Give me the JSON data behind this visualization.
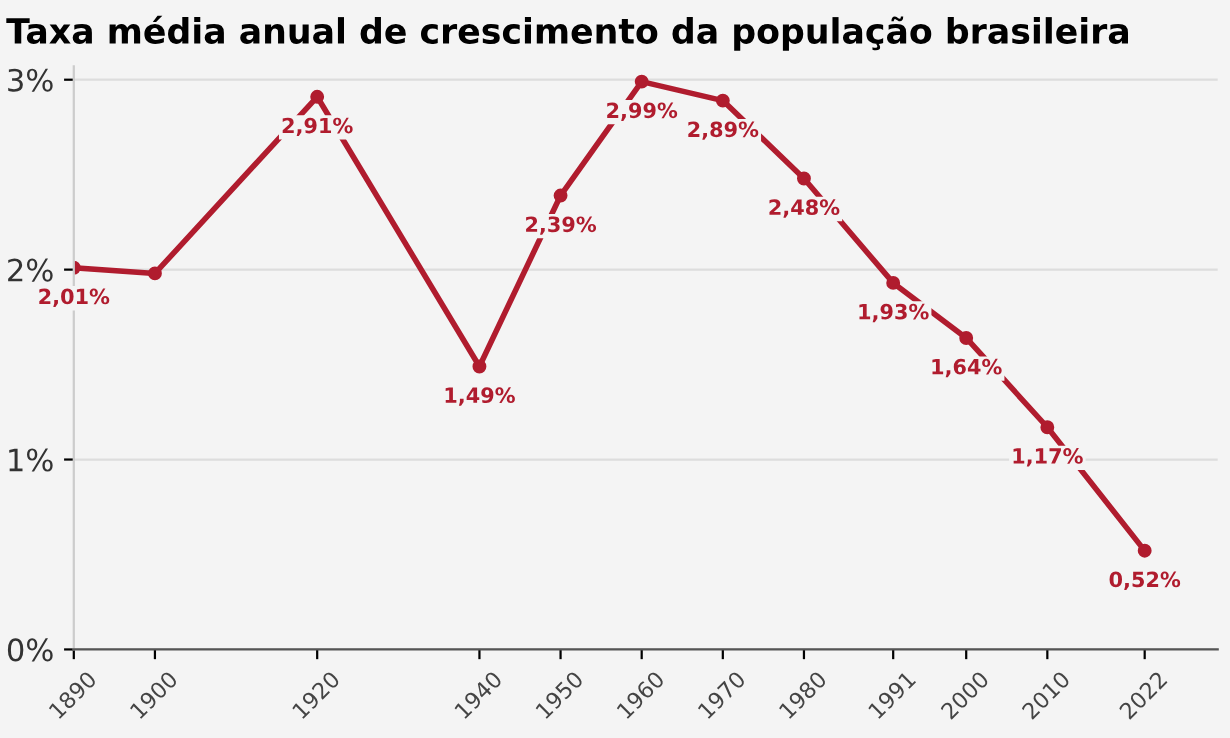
{
  "chart_data": {
    "type": "line",
    "title": "Taxa média anual de crescimento da população brasileira",
    "x": [
      1890,
      1900,
      1920,
      1940,
      1950,
      1960,
      1970,
      1980,
      1991,
      2000,
      2010,
      2022
    ],
    "series": [
      {
        "color": "#b01c2e",
        "values": [
          2.01,
          1.98,
          2.91,
          1.49,
          2.39,
          2.99,
          2.89,
          2.48,
          1.93,
          1.64,
          1.17,
          0.52
        ],
        "value_labels": [
          "2,01%",
          null,
          "2,91%",
          "1,49%",
          "2,39%",
          "2,99%",
          "2,89%",
          "2,48%",
          "1,93%",
          "1,64%",
          "1,17%",
          "0,52%"
        ]
      }
    ],
    "xlim": [
      1890,
      2031
    ],
    "xticks": [
      1890,
      1900,
      1920,
      1940,
      1950,
      1960,
      1970,
      1980,
      1991,
      2000,
      2010,
      2022
    ],
    "ylim": [
      0,
      3.07
    ],
    "yticks": [
      {
        "value": 0,
        "label": "0%"
      },
      {
        "value": 1,
        "label": "1%"
      },
      {
        "value": 2,
        "label": "2%"
      },
      {
        "value": 3,
        "label": "3%"
      }
    ],
    "grid": "y",
    "marker": "circle",
    "line_style": "solid",
    "legend": false
  }
}
